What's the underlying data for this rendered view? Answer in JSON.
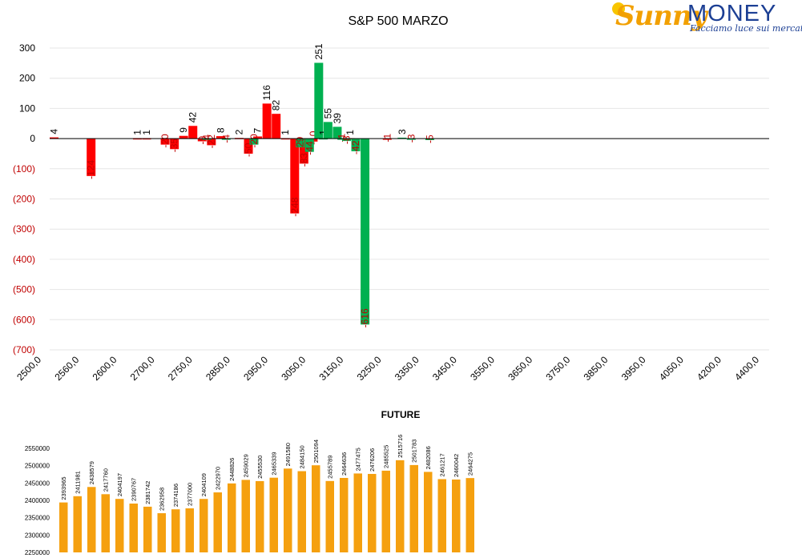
{
  "logo": {
    "brand_a": "Sunny",
    "brand_b": "MONEY",
    "tagline": "Facciamo luce sui mercati"
  },
  "colors": {
    "positive": "#00b050",
    "negative": "#ff0000",
    "future": "#f5a00f",
    "negative_label": "#c00000"
  },
  "chart_data": [
    {
      "type": "bar",
      "title": "S&P 500 MARZO",
      "xlabel": "",
      "ylabel": "",
      "ylim": [
        -700,
        300
      ],
      "yticks": [
        300,
        200,
        100,
        0,
        -100,
        -200,
        -300,
        -400,
        -500,
        -600,
        -700
      ],
      "ytick_labels": [
        "300",
        "200",
        "100",
        "0",
        "(100)",
        "(200)",
        "(300)",
        "(400)",
        "(500)",
        "(600)",
        "(700)"
      ],
      "grid": true,
      "x_tick_labels": [
        "2500,0",
        "2560,0",
        "2600,0",
        "2700,0",
        "2750,0",
        "2850,0",
        "2950,0",
        "3050,0",
        "3150,0",
        "3250,0",
        "3350,0",
        "3450,0",
        "3550,0",
        "3650,0",
        "3750,0",
        "3850,0",
        "3950,0",
        "4050,0",
        "4200,0",
        "4400,0"
      ],
      "series": [
        {
          "color": "red",
          "points": [
            {
              "i": 0,
              "v": 4,
              "label": "4"
            },
            {
              "i": 4,
              "v": -124,
              "label": "-124"
            },
            {
              "i": 9,
              "v": 1,
              "label": "1"
            },
            {
              "i": 10,
              "v": 1,
              "label": "1"
            },
            {
              "i": 12,
              "v": -20,
              "label": "-20"
            },
            {
              "i": 13,
              "v": -35,
              "label": "-35"
            },
            {
              "i": 14,
              "v": 9,
              "label": "9"
            },
            {
              "i": 15,
              "v": 42,
              "label": "42"
            },
            {
              "i": 16,
              "v": -9,
              "label": "-9"
            },
            {
              "i": 17,
              "v": -22,
              "label": "-22"
            },
            {
              "i": 18,
              "v": 8,
              "label": "8"
            },
            {
              "i": 20,
              "v": 2,
              "label": "2"
            },
            {
              "i": 21,
              "v": -50,
              "label": "-50"
            },
            {
              "i": 22,
              "v": 7,
              "label": "7"
            },
            {
              "i": 23,
              "v": 116,
              "label": "116"
            },
            {
              "i": 24,
              "v": 82,
              "label": "82"
            },
            {
              "i": 25,
              "v": 1,
              "label": "1"
            },
            {
              "i": 26,
              "v": -248,
              "label": "-248"
            },
            {
              "i": 27,
              "v": -83,
              "label": "-83"
            },
            {
              "i": 28,
              "v": -10,
              "label": "-10"
            },
            {
              "i": 32,
              "v": 1,
              "label": "1"
            },
            {
              "i": 36,
              "v": -1,
              "label": "-1"
            }
          ]
        },
        {
          "color": "green",
          "points": [
            {
              "i": 16.5,
              "v": -4,
              "label": "-4"
            },
            {
              "i": 18.6,
              "v": -4,
              "label": "-4"
            },
            {
              "i": 21.6,
              "v": -20,
              "label": "-20"
            },
            {
              "i": 26.6,
              "v": -29,
              "label": "-29"
            },
            {
              "i": 27.6,
              "v": -44,
              "label": "-44"
            },
            {
              "i": 28.6,
              "v": 251,
              "label": "251"
            },
            {
              "i": 29.1,
              "v": 1,
              "label": "1"
            },
            {
              "i": 29.6,
              "v": 55,
              "label": "55"
            },
            {
              "i": 30.6,
              "v": 39,
              "label": "39"
            },
            {
              "i": 31.1,
              "v": -1,
              "label": "-1"
            },
            {
              "i": 31.6,
              "v": -8,
              "label": "-8"
            },
            {
              "i": 32.6,
              "v": -42,
              "label": "-42"
            },
            {
              "i": 33.6,
              "v": -616,
              "label": "-616"
            },
            {
              "i": 37.6,
              "v": 3,
              "label": "3"
            },
            {
              "i": 38.6,
              "v": -3,
              "label": "-3"
            },
            {
              "i": 40.6,
              "v": -5,
              "label": "-5"
            }
          ]
        }
      ]
    },
    {
      "type": "bar",
      "title": "FUTURE",
      "ylim": [
        2250000,
        2550000
      ],
      "yticks": [
        2550000,
        2500000,
        2450000,
        2400000,
        2350000,
        2300000,
        2250000
      ],
      "ytick_labels": [
        "2550000",
        "2500000",
        "2450000",
        "2400000",
        "2350000",
        "2300000",
        "2250000"
      ],
      "values": [
        2393965,
        2411981,
        2438579,
        2417760,
        2404197,
        2390767,
        2381742,
        2362958,
        2374186,
        2377000,
        2404109,
        2422970,
        2448826,
        2459029,
        2455530,
        2465339,
        2491580,
        2484150,
        2501094,
        2455789,
        2464636,
        2477475,
        2476206,
        2485525,
        2515716,
        2501783,
        2482086,
        2461217,
        2460042,
        2464275
      ],
      "labels": [
        "2393965",
        "2411981",
        "2438579",
        "2417760",
        "2404197",
        "2390767",
        "2381742",
        "2362958",
        "2374186",
        "2377000",
        "2404109",
        "2422970",
        "2448826",
        "2459029",
        "2455530",
        "2465339",
        "2491580",
        "2484150",
        "2501094",
        "2455789",
        "2464636",
        "2477475",
        "2476206",
        "2485525",
        "2515716",
        "2501783",
        "2482086",
        "2461217",
        "2460042",
        "2464275"
      ]
    }
  ]
}
